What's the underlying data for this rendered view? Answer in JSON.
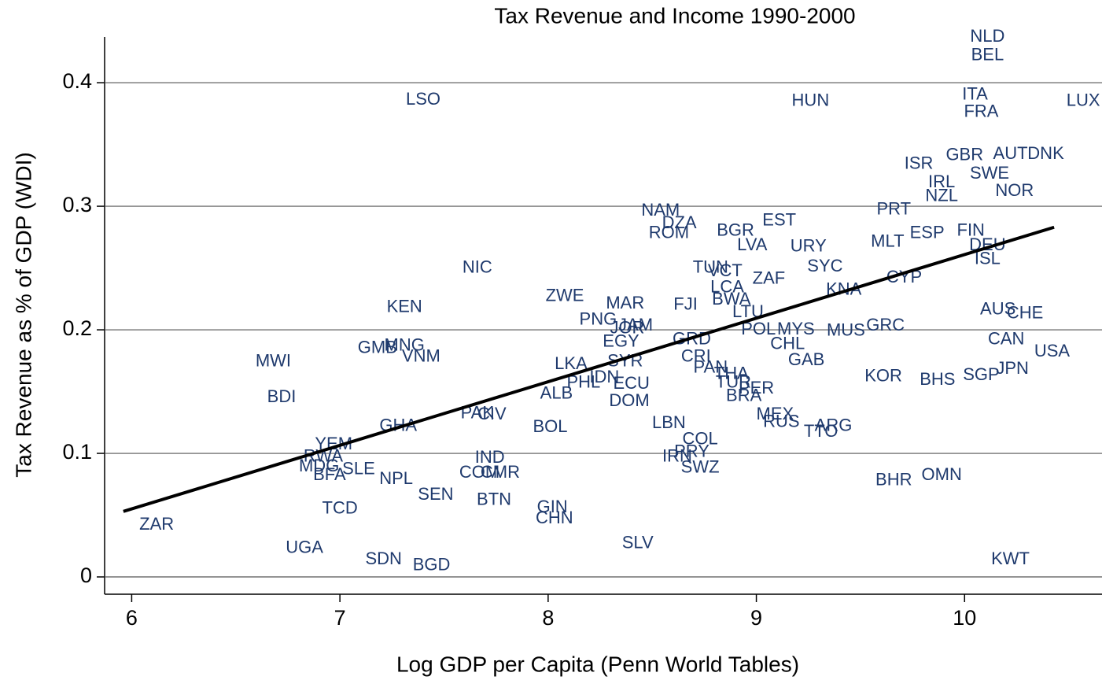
{
  "chart_data": {
    "type": "scatter",
    "title": "Tax Revenue and Income 1990-2000",
    "x_label": "Log GDP per Capita (Penn World Tables)",
    "y_label": "Tax Revenue as % of GDP (WDI)",
    "xlim": [
      5.87,
      10.66
    ],
    "ylim": [
      -0.014,
      0.437
    ],
    "xticks": [
      6,
      7,
      8,
      9,
      10
    ],
    "yticks": [
      0,
      0.1,
      0.2,
      0.3,
      0.4
    ],
    "grid": true,
    "color": "#1f3a6d",
    "labels": [
      "NLD",
      "BEL",
      "LSO",
      "HUN",
      "ITA",
      "FRA",
      "LUX",
      "ISR",
      "GBR",
      "AUT",
      "DNK",
      "IRL",
      "SWE",
      "NZL",
      "NOR",
      "PRT",
      "NAM",
      "DZA",
      "ROM",
      "BGR",
      "EST",
      "LVA",
      "URY",
      "MLT",
      "ESP",
      "FIN",
      "DEU",
      "ISL",
      "NIC",
      "TUN",
      "VCT",
      "SYC",
      "CYP",
      "ZAF",
      "LCA",
      "KNA",
      "ZWE",
      "MAR",
      "FJI",
      "BWA",
      "LTU",
      "KEN",
      "AUS",
      "CHE",
      "PNG",
      "JOR",
      "JAM",
      "POL",
      "MYS",
      "MUS",
      "GRC",
      "EGY",
      "GRD",
      "CHL",
      "CAN",
      "USA",
      "GMB",
      "MNG",
      "VNM",
      "MWI",
      "CRI",
      "GAB",
      "LKA",
      "SYR",
      "PAN",
      "THA",
      "KOR",
      "SGP",
      "JPN",
      "BHS",
      "IDN",
      "PHL",
      "ECU",
      "TUR",
      "PER",
      "BRA",
      "ALB",
      "BDI",
      "DOM",
      "PAK",
      "CIV",
      "LBN",
      "MEX",
      "RUS",
      "ARG",
      "TTO",
      "BOL",
      "GHA",
      "YEM",
      "RWA",
      "MDG",
      "SLE",
      "BFA",
      "NPL",
      "COL",
      "PRY",
      "IRN",
      "SWZ",
      "IND",
      "COM",
      "CMR",
      "BHR",
      "OMN",
      "SEN",
      "BTN",
      "TCD",
      "GIN",
      "CHN",
      "ZAR",
      "SLV",
      "UGA",
      "SDN",
      "BGD",
      "KWT"
    ],
    "x": [
      10.11,
      10.11,
      7.4,
      9.26,
      10.05,
      10.08,
      10.57,
      9.78,
      10.0,
      10.22,
      10.39,
      9.89,
      10.12,
      9.89,
      10.24,
      9.66,
      8.54,
      8.63,
      8.58,
      8.9,
      9.11,
      8.98,
      9.25,
      9.63,
      9.82,
      10.03,
      10.11,
      10.11,
      7.66,
      8.78,
      8.85,
      9.33,
      9.71,
      9.06,
      8.86,
      9.42,
      8.08,
      8.37,
      8.66,
      8.88,
      8.96,
      7.31,
      10.16,
      10.29,
      8.24,
      8.38,
      8.42,
      9.01,
      9.19,
      9.43,
      9.62,
      8.35,
      8.69,
      9.15,
      10.2,
      10.42,
      7.18,
      7.31,
      7.39,
      6.68,
      8.71,
      9.24,
      8.11,
      8.37,
      8.78,
      8.88,
      9.61,
      10.08,
      10.23,
      9.87,
      8.27,
      8.17,
      8.4,
      8.89,
      9.0,
      8.94,
      8.04,
      6.72,
      8.39,
      7.66,
      7.73,
      8.58,
      9.09,
      9.12,
      9.37,
      9.31,
      8.01,
      7.28,
      6.97,
      6.92,
      6.9,
      7.09,
      6.95,
      7.27,
      8.73,
      8.69,
      8.62,
      8.73,
      7.72,
      7.67,
      7.77,
      9.66,
      9.89,
      7.46,
      7.74,
      7.0,
      8.02,
      8.03,
      6.12,
      8.43,
      6.83,
      7.21,
      7.44,
      10.22
    ],
    "values": [
      0.437,
      0.422,
      0.386,
      0.385,
      0.39,
      0.376,
      0.385,
      0.334,
      0.341,
      0.342,
      0.342,
      0.319,
      0.326,
      0.308,
      0.312,
      0.297,
      0.296,
      0.286,
      0.278,
      0.28,
      0.288,
      0.268,
      0.267,
      0.271,
      0.278,
      0.28,
      0.268,
      0.257,
      0.25,
      0.25,
      0.247,
      0.251,
      0.242,
      0.241,
      0.234,
      0.232,
      0.227,
      0.221,
      0.22,
      0.224,
      0.214,
      0.218,
      0.216,
      0.213,
      0.208,
      0.201,
      0.203,
      0.2,
      0.2,
      0.199,
      0.203,
      0.19,
      0.192,
      0.188,
      0.192,
      0.182,
      0.185,
      0.187,
      0.178,
      0.174,
      0.178,
      0.175,
      0.172,
      0.174,
      0.169,
      0.164,
      0.162,
      0.163,
      0.168,
      0.159,
      0.161,
      0.157,
      0.156,
      0.157,
      0.152,
      0.146,
      0.148,
      0.145,
      0.142,
      0.132,
      0.131,
      0.124,
      0.131,
      0.125,
      0.122,
      0.117,
      0.121,
      0.122,
      0.107,
      0.097,
      0.089,
      0.087,
      0.082,
      0.079,
      0.111,
      0.101,
      0.097,
      0.088,
      0.096,
      0.084,
      0.084,
      0.078,
      0.082,
      0.066,
      0.062,
      0.055,
      0.056,
      0.047,
      0.042,
      0.027,
      0.023,
      0.014,
      0.009,
      0.014
    ],
    "fit": {
      "color": "#000000",
      "x": [
        5.96,
        10.43
      ],
      "values": [
        0.053,
        0.283
      ]
    }
  }
}
